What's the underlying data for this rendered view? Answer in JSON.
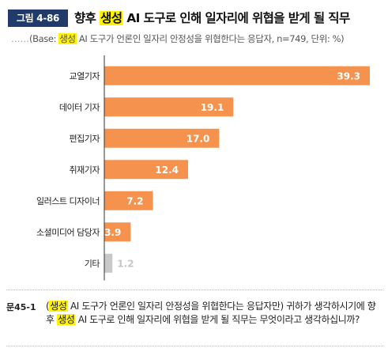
{
  "figure": {
    "badge": "그림 4-86",
    "title_pre": "향후 ",
    "title_hl": "생성",
    "title_post": " AI 도구로 인해 일자리에 위협을 받게 될 직무"
  },
  "subtitle": {
    "dots": "……",
    "pre": "(Base: ",
    "hl": "생성",
    "post": " AI 도구가 언론인 일자리 안정성을 위협한다는 응답자, n=749, 단위: %)"
  },
  "chart_data": {
    "type": "bar",
    "orientation": "horizontal",
    "categories": [
      "교열기자",
      "데이터 기자",
      "편집기자",
      "취재기자",
      "일러스트 디자이너",
      "소셜미디어 담당자",
      "기타"
    ],
    "values": [
      39.3,
      19.1,
      17.0,
      12.4,
      7.2,
      3.9,
      1.2
    ],
    "labels": [
      "39.3",
      "19.1",
      "17.0",
      "12.4",
      "7.2",
      "3.9",
      "1.2"
    ],
    "xlim": [
      0,
      40
    ],
    "colors": {
      "bar": "#f5924e",
      "other_bar": "#c9c9c9",
      "label_in": "#ffffff",
      "label_out": "#c6c6c6"
    }
  },
  "question": {
    "label": "문45-1",
    "pre": "(",
    "hl1": "생성",
    "mid1": " AI 도구가 언론인 일자리 안정성을 위협한다는 응답자만) 귀하가 생각하시기에 향후 ",
    "hl2": "생성",
    "post": " AI 도구로 인해 일자리에 위협을 받게 될 직무는 무엇이라고 생각하십니까?"
  }
}
